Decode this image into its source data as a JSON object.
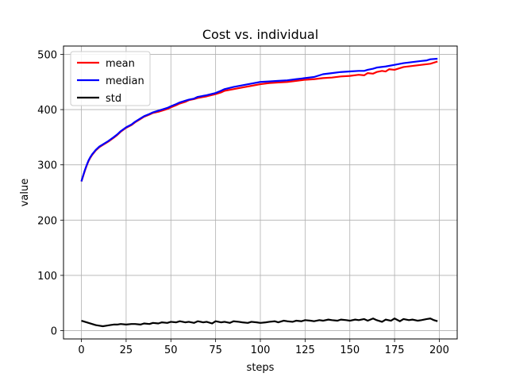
{
  "chart_data": {
    "type": "line",
    "title": "Cost vs. individual",
    "xlabel": "steps",
    "ylabel": "value",
    "xlim": [
      -10,
      210
    ],
    "ylim": [
      -15,
      515
    ],
    "xticks": [
      0,
      25,
      50,
      75,
      100,
      125,
      150,
      175,
      200
    ],
    "yticks": [
      0,
      100,
      200,
      300,
      400,
      500
    ],
    "grid": true,
    "legend_position": "top-left",
    "series": [
      {
        "name": "mean",
        "color": "#ff0000",
        "x": [
          0,
          1,
          2,
          3,
          4,
          5,
          6,
          8,
          10,
          12,
          15,
          18,
          20,
          22,
          25,
          28,
          30,
          33,
          35,
          38,
          40,
          43,
          45,
          48,
          50,
          53,
          55,
          58,
          60,
          63,
          65,
          70,
          75,
          78,
          80,
          85,
          90,
          95,
          100,
          105,
          110,
          115,
          120,
          125,
          130,
          135,
          140,
          145,
          150,
          155,
          158,
          160,
          163,
          165,
          168,
          170,
          172,
          175,
          178,
          180,
          185,
          190,
          195,
          199
        ],
        "y": [
          270,
          280,
          290,
          299,
          307,
          313,
          318,
          326,
          332,
          336,
          342,
          349,
          354,
          360,
          367,
          372,
          377,
          383,
          387,
          391,
          394,
          396,
          398,
          401,
          404,
          408,
          411,
          414,
          417,
          419,
          421,
          424,
          428,
          431,
          434,
          437,
          440,
          443,
          446,
          448,
          449,
          450,
          452,
          454,
          455,
          457,
          458,
          460,
          461,
          463,
          462,
          466,
          465,
          468,
          470,
          469,
          473,
          472,
          475,
          477,
          479,
          481,
          483,
          487
        ]
      },
      {
        "name": "median",
        "color": "#0000ff",
        "x": [
          0,
          1,
          2,
          3,
          4,
          5,
          6,
          8,
          10,
          12,
          15,
          18,
          20,
          22,
          25,
          28,
          30,
          33,
          35,
          38,
          40,
          43,
          45,
          48,
          50,
          53,
          55,
          58,
          60,
          63,
          65,
          70,
          75,
          78,
          80,
          85,
          90,
          95,
          100,
          105,
          110,
          115,
          120,
          125,
          130,
          135,
          140,
          145,
          150,
          155,
          158,
          160,
          163,
          165,
          170,
          175,
          180,
          185,
          190,
          193,
          195,
          199
        ],
        "y": [
          270,
          281,
          291,
          300,
          308,
          314,
          319,
          327,
          333,
          337,
          343,
          350,
          355,
          361,
          368,
          373,
          378,
          384,
          388,
          392,
          395,
          398,
          400,
          403,
          406,
          410,
          413,
          416,
          418,
          420,
          423,
          426,
          430,
          434,
          437,
          441,
          444,
          447,
          450,
          451,
          452,
          453,
          455,
          457,
          459,
          464,
          466,
          468,
          469,
          470,
          470,
          472,
          474,
          476,
          478,
          481,
          484,
          486,
          488,
          489,
          491,
          492
        ]
      },
      {
        "name": "std",
        "color": "#000000",
        "x": [
          0,
          2,
          4,
          6,
          8,
          10,
          12,
          14,
          16,
          18,
          20,
          22,
          25,
          28,
          30,
          33,
          35,
          38,
          40,
          43,
          45,
          48,
          50,
          53,
          55,
          58,
          60,
          63,
          65,
          68,
          70,
          73,
          75,
          78,
          80,
          83,
          85,
          88,
          90,
          93,
          95,
          98,
          100,
          103,
          105,
          108,
          110,
          113,
          115,
          118,
          120,
          123,
          125,
          128,
          130,
          133,
          135,
          138,
          140,
          143,
          145,
          148,
          150,
          153,
          155,
          158,
          160,
          163,
          165,
          168,
          170,
          173,
          175,
          178,
          180,
          183,
          185,
          188,
          190,
          193,
          195,
          197,
          199
        ],
        "y": [
          18,
          16,
          14,
          12,
          10,
          9,
          8,
          9,
          10,
          11,
          11,
          12,
          11,
          12,
          12,
          11,
          13,
          12,
          14,
          13,
          15,
          14,
          16,
          15,
          17,
          15,
          16,
          14,
          17,
          15,
          16,
          13,
          17,
          15,
          16,
          14,
          17,
          16,
          15,
          14,
          16,
          15,
          14,
          15,
          16,
          17,
          15,
          18,
          17,
          16,
          18,
          17,
          19,
          18,
          17,
          19,
          18,
          20,
          19,
          18,
          20,
          19,
          18,
          20,
          19,
          21,
          18,
          22,
          19,
          16,
          20,
          18,
          22,
          17,
          21,
          19,
          20,
          18,
          19,
          21,
          22,
          19,
          17
        ]
      }
    ]
  }
}
